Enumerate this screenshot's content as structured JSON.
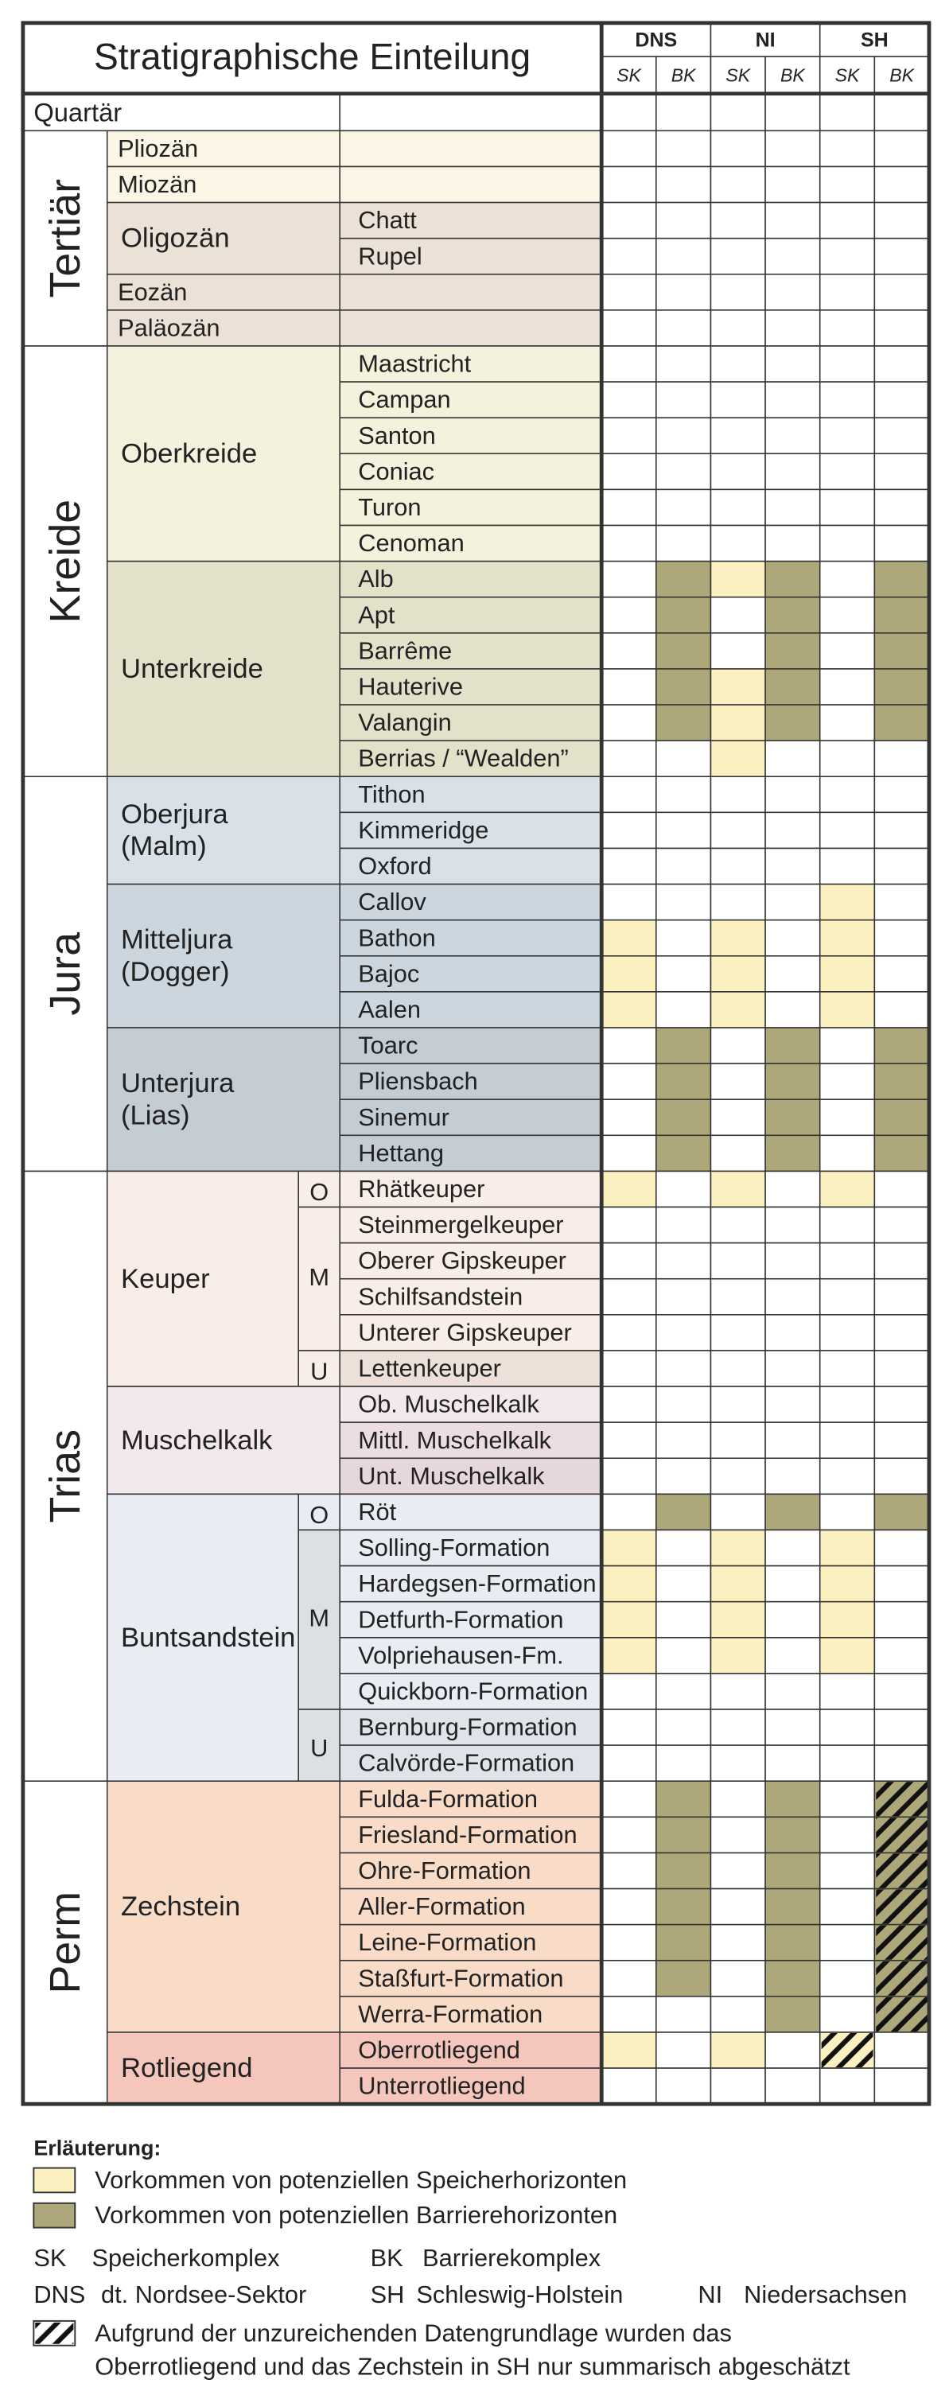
{
  "header": {
    "title": "Stratigraphische Einteilung",
    "regions": [
      "DNS",
      "NI",
      "SH"
    ],
    "columns": [
      "SK",
      "BK",
      "SK",
      "BK",
      "SK",
      "BK"
    ]
  },
  "periods": [
    {
      "name": "Quartär",
      "fill": "------"
    },
    {
      "name": "Tertiär",
      "epochs": [
        {
          "lines": [
            "Pliozän"
          ],
          "color": "#faf5e4",
          "stages": [
            {
              "fill": "------"
            }
          ]
        },
        {
          "lines": [
            "Miozän"
          ],
          "color": "#faf5e4",
          "stages": [
            {
              "fill": "------"
            }
          ]
        },
        {
          "lines": [
            "Oligozän"
          ],
          "color": "#ece1d6",
          "stages": [
            {
              "name": "Chatt",
              "fill": "------"
            },
            {
              "name": "Rupel",
              "fill": "------"
            }
          ]
        },
        {
          "lines": [
            "Eozän"
          ],
          "color": "#ece1d6",
          "stages": [
            {
              "fill": "------"
            }
          ]
        },
        {
          "lines": [
            "Paläozän"
          ],
          "color": "#ece1d6",
          "stages": [
            {
              "fill": "------"
            }
          ]
        }
      ]
    },
    {
      "name": "Kreide",
      "epochs": [
        {
          "lines": [
            "Oberkreide"
          ],
          "color": "#f3f2dc",
          "stages": [
            {
              "name": "Maastricht",
              "fill": "------"
            },
            {
              "name": "Campan",
              "fill": "------"
            },
            {
              "name": "Santon",
              "fill": "------"
            },
            {
              "name": "Coniac",
              "fill": "------"
            },
            {
              "name": "Turon",
              "fill": "------"
            },
            {
              "name": "Cenoman",
              "fill": "------"
            }
          ]
        },
        {
          "lines": [
            "Unterkreide"
          ],
          "color": "#e4e1cb",
          "stages": [
            {
              "name": "Alb",
              "fill": "-BSB-B"
            },
            {
              "name": "Apt",
              "fill": "-B-B-B"
            },
            {
              "name": "Barrême",
              "fill": "-B-B-B"
            },
            {
              "name": "Hauterive",
              "fill": "-BSB-B"
            },
            {
              "name": "Valangin",
              "fill": "-BSB-B"
            },
            {
              "name": "Berrias / “Wealden”",
              "fill": "--S---"
            }
          ]
        }
      ]
    },
    {
      "name": "Jura",
      "epochs": [
        {
          "lines": [
            "Oberjura",
            "(Malm)"
          ],
          "color": "#d8e1e8",
          "stages": [
            {
              "name": "Tithon",
              "fill": "------"
            },
            {
              "name": "Kimmeridge",
              "fill": "------"
            },
            {
              "name": "Oxford",
              "fill": "------"
            }
          ]
        },
        {
          "lines": [
            "Mitteljura",
            "(Dogger)"
          ],
          "color": "#cbd6de",
          "stages": [
            {
              "name": "Callov",
              "fill": "----S-"
            },
            {
              "name": "Bathon",
              "fill": "S-S-S-"
            },
            {
              "name": "Bajoc",
              "fill": "S-S-S-"
            },
            {
              "name": "Aalen",
              "fill": "S-S-S-"
            }
          ]
        },
        {
          "lines": [
            "Unterjura",
            "(Lias)"
          ],
          "color": "#c4ccd4",
          "stages": [
            {
              "name": "Toarc",
              "fill": "-B-B-B"
            },
            {
              "name": "Pliensbach",
              "fill": "-B-B-B"
            },
            {
              "name": "Sinemur",
              "fill": "-B-B-B"
            },
            {
              "name": "Hettang",
              "fill": "-B-B-B"
            }
          ]
        }
      ]
    },
    {
      "name": "Trias",
      "epochs": [
        {
          "lines": [
            "Keuper"
          ],
          "color": "#f8ede7",
          "subs": [
            {
              "label": "O",
              "count": 1
            },
            {
              "label": "M",
              "count": 4
            },
            {
              "label": "U",
              "count": 1
            }
          ],
          "stages": [
            {
              "name": "Rhätkeuper",
              "fill": "S-S-S-"
            },
            {
              "name": "Steinmergelkeuper",
              "fill": "------"
            },
            {
              "name": "Oberer Gipskeuper",
              "fill": "------"
            },
            {
              "name": "Schilfsandstein",
              "fill": "------"
            },
            {
              "name": "Unterer Gipskeuper",
              "fill": "------"
            },
            {
              "name": "Lettenkeuper",
              "color": "#ece0d8",
              "fill": "------"
            }
          ]
        },
        {
          "lines": [
            "Muschelkalk"
          ],
          "color": "#f4e8ef",
          "stages": [
            {
              "name": "Ob. Muschelkalk",
              "fill": "------"
            },
            {
              "name": "Mittl. Muschelkalk",
              "color": "#ecdde4",
              "fill": "------"
            },
            {
              "name": "Unt. Muschelkalk",
              "color": "#e6d6dd",
              "fill": "------"
            }
          ]
        },
        {
          "lines": [
            "Buntsandstein"
          ],
          "color": "#e9ecf2",
          "subs": [
            {
              "label": "O",
              "count": 1,
              "color": "#e9ecf2"
            },
            {
              "label": "M",
              "count": 5,
              "color": "#dcdfe4"
            },
            {
              "label": "U",
              "count": 2,
              "color": "#dcdfe4"
            }
          ],
          "stages": [
            {
              "name": "Röt",
              "fill": "-B-B-B"
            },
            {
              "name": "Solling-Formation",
              "fill": "S-S-S-"
            },
            {
              "name": "Hardegsen-Formation",
              "fill": "S-S-S-"
            },
            {
              "name": "Detfurth-Formation",
              "fill": "S-S-S-"
            },
            {
              "name": "Volpriehausen-Fm.",
              "fill": "S-S-S-"
            },
            {
              "name": "Quickborn-Formation",
              "fill": "------"
            },
            {
              "name": "Bernburg-Formation",
              "color": "#dfe3ea",
              "fill": "------"
            },
            {
              "name": "Calvörde-Formation",
              "color": "#dfe3ea",
              "fill": "------"
            }
          ]
        }
      ]
    },
    {
      "name": "Perm",
      "epochs": [
        {
          "lines": [
            "Zechstein"
          ],
          "color": "#f9dcc8",
          "stages": [
            {
              "name": "Fulda-Formation",
              "fill": "-B-B-H"
            },
            {
              "name": "Friesland-Formation",
              "fill": "-B-B-H"
            },
            {
              "name": "Ohre-Formation",
              "fill": "-B-B-H"
            },
            {
              "name": "Aller-Formation",
              "fill": "-B-B-H"
            },
            {
              "name": "Leine-Formation",
              "fill": "-B-B-H"
            },
            {
              "name": "Staßfurt-Formation",
              "fill": "-B-B-H"
            },
            {
              "name": "Werra-Formation",
              "fill": "---B-H"
            }
          ]
        },
        {
          "lines": [
            "Rotliegend"
          ],
          "color": "#f5c7bc",
          "stages": [
            {
              "name": "Oberrotliegend",
              "fill": "S-S-h-"
            },
            {
              "name": "Unterrotliegend",
              "fill": "------"
            }
          ]
        }
      ]
    }
  ],
  "palette": {
    "S": "#fbf0c0",
    "B": "#aea779",
    "h": "#fbf0c0",
    "H": "#aea779",
    "-": "#ffffff"
  },
  "legend": {
    "heading": "Erläuterung:",
    "items": [
      {
        "code": "S",
        "text": "Vorkommen von potenziellen Speicherhorizonten"
      },
      {
        "code": "B",
        "text": "Vorkommen von potenziellen Barrierehorizonten"
      }
    ],
    "abbreviations": [
      [
        {
          "code": "SK",
          "text": "Speicherkomplex"
        },
        {
          "code": "BK",
          "text": "Barrierekomplex"
        }
      ],
      [
        {
          "code": "DNS",
          "text": "dt. Nordsee-Sektor"
        },
        {
          "code": "SH",
          "text": "Schleswig-Holstein"
        },
        {
          "code": "NI",
          "text": "Niedersachsen"
        }
      ]
    ],
    "note": [
      "Aufgrund der unzureichenden Datengrundlage wurden das",
      "Oberrotliegend und das Zechstein in SH nur summarisch abgeschätzt"
    ]
  }
}
